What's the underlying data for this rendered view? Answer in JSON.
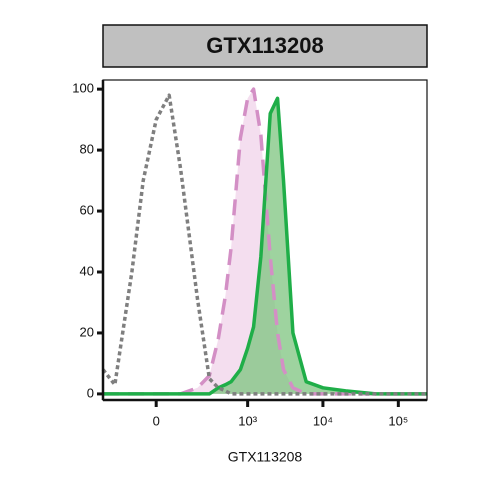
{
  "chart_data": {
    "type": "histogram-overlay",
    "title": "GTX113208",
    "xlabel": "GTX113208",
    "xscale": "asinh",
    "x": [
      -300,
      -200,
      -100,
      -50,
      0,
      50,
      100,
      200,
      300,
      400,
      500,
      600,
      800,
      1000,
      1200,
      1500,
      2000,
      2500,
      3000,
      4000,
      6000,
      10000,
      20000,
      50000,
      100000,
      240000
    ],
    "series": [
      {
        "color": "#f0d3ea",
        "line_color": "#d38fc5",
        "dash": "dashed",
        "filled": true,
        "values": [
          0,
          0,
          0,
          0,
          0,
          0,
          0,
          2,
          6,
          18,
          32,
          48,
          84,
          97,
          100,
          85,
          45,
          20,
          8,
          2,
          0,
          0,
          0,
          0,
          0,
          0
        ]
      },
      {
        "color": "#7dc47f",
        "line_color": "#1fae48",
        "dash": "solid",
        "filled": true,
        "values": [
          0,
          0,
          0,
          0,
          0,
          0,
          0,
          0,
          0,
          2,
          3,
          4,
          8,
          15,
          22,
          45,
          92,
          97,
          70,
          20,
          4,
          2,
          1,
          0,
          0,
          0
        ]
      },
      {
        "color": "#7f7f7f",
        "line_color": "#7f7f7f",
        "dash": "dotted",
        "filled": false,
        "values": [
          8,
          3,
          40,
          70,
          90,
          98,
          74,
          31,
          5,
          2,
          1,
          0,
          0,
          0,
          0,
          0,
          0,
          0,
          0,
          0,
          0,
          0,
          0,
          0,
          0,
          0
        ]
      }
    ],
    "xlim": [
      -300,
      240000
    ],
    "xticks": [
      0,
      {
        "value": 1000,
        "label": "10³"
      },
      {
        "value": 10000,
        "label": "10⁴"
      },
      {
        "value": 100000,
        "label": "10⁵"
      }
    ],
    "ylim": [
      -2,
      103
    ],
    "yticks": [
      0,
      20,
      40,
      60,
      80,
      100
    ]
  }
}
